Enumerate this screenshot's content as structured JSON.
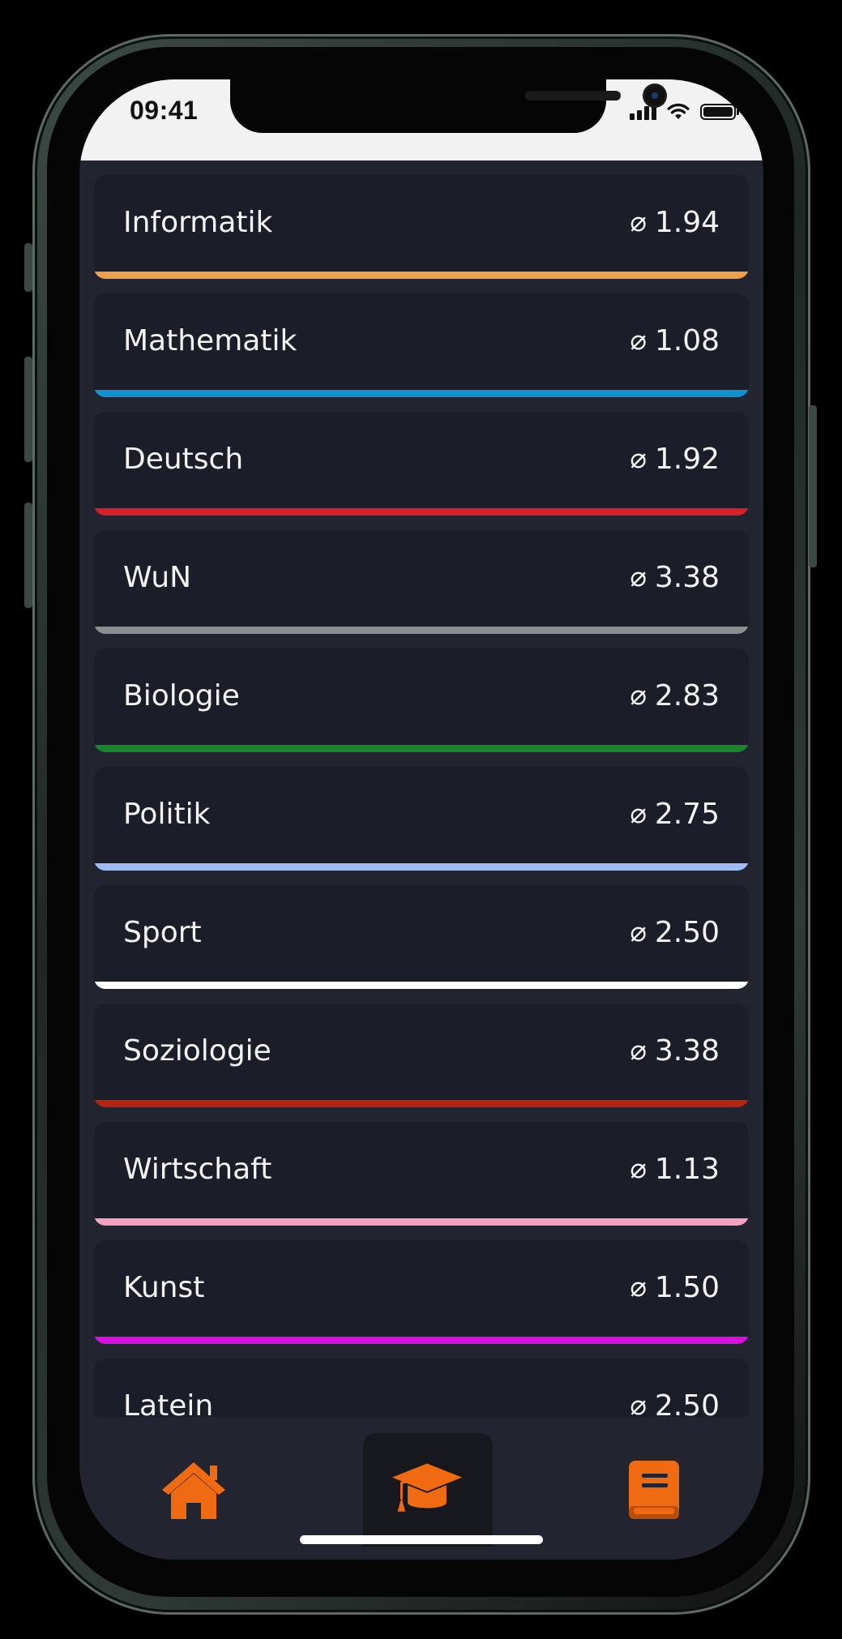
{
  "status": {
    "time": "09:41"
  },
  "subjects": [
    {
      "name": "Informatik",
      "avg_symbol": "⌀",
      "avg": "1.94",
      "color": "#f0a04b"
    },
    {
      "name": "Mathematik",
      "avg_symbol": "⌀",
      "avg": "1.08",
      "color": "#1192d0"
    },
    {
      "name": "Deutsch",
      "avg_symbol": "⌀",
      "avg": "1.92",
      "color": "#d61f26"
    },
    {
      "name": "WuN",
      "avg_symbol": "⌀",
      "avg": "3.38",
      "color": "#8e8e8e"
    },
    {
      "name": "Biologie",
      "avg_symbol": "⌀",
      "avg": "2.83",
      "color": "#17862b"
    },
    {
      "name": "Politik",
      "avg_symbol": "⌀",
      "avg": "2.75",
      "color": "#9ebdf6"
    },
    {
      "name": "Sport",
      "avg_symbol": "⌀",
      "avg": "2.50",
      "color": "#ffffff"
    },
    {
      "name": "Soziologie",
      "avg_symbol": "⌀",
      "avg": "3.38",
      "color": "#b62410"
    },
    {
      "name": "Wirtschaft",
      "avg_symbol": "⌀",
      "avg": "1.13",
      "color": "#f4a1c0"
    },
    {
      "name": "Kunst",
      "avg_symbol": "⌀",
      "avg": "1.50",
      "color": "#d80fe0"
    },
    {
      "name": "Latein",
      "avg_symbol": "⌀",
      "avg": "2.50",
      "color": "#1192d0"
    }
  ],
  "tabs": [
    {
      "icon": "home-icon",
      "active": false
    },
    {
      "icon": "graduation-cap-icon",
      "active": true
    },
    {
      "icon": "book-icon",
      "active": false
    }
  ],
  "accent": "#f06a12"
}
